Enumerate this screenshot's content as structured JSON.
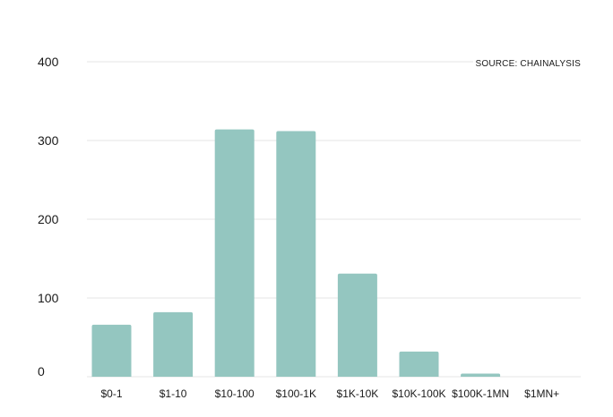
{
  "chart_data": {
    "type": "bar",
    "categories": [
      "$0-1",
      "$1-10",
      "$10-100",
      "$100-1K",
      "$1K-10K",
      "$10K-100K",
      "$100K-1MN",
      "$1MN+"
    ],
    "values": [
      66,
      82,
      314,
      312,
      131,
      32,
      4,
      0
    ],
    "yticks": [
      0,
      100,
      200,
      300,
      400
    ],
    "ylim": [
      0,
      400
    ],
    "grid": true,
    "annotation": "SOURCE: CHAINALYSIS",
    "colors": {
      "bar": "#94c6c0",
      "grid": "#e6e6e6",
      "text": "#1a1a1a"
    }
  }
}
